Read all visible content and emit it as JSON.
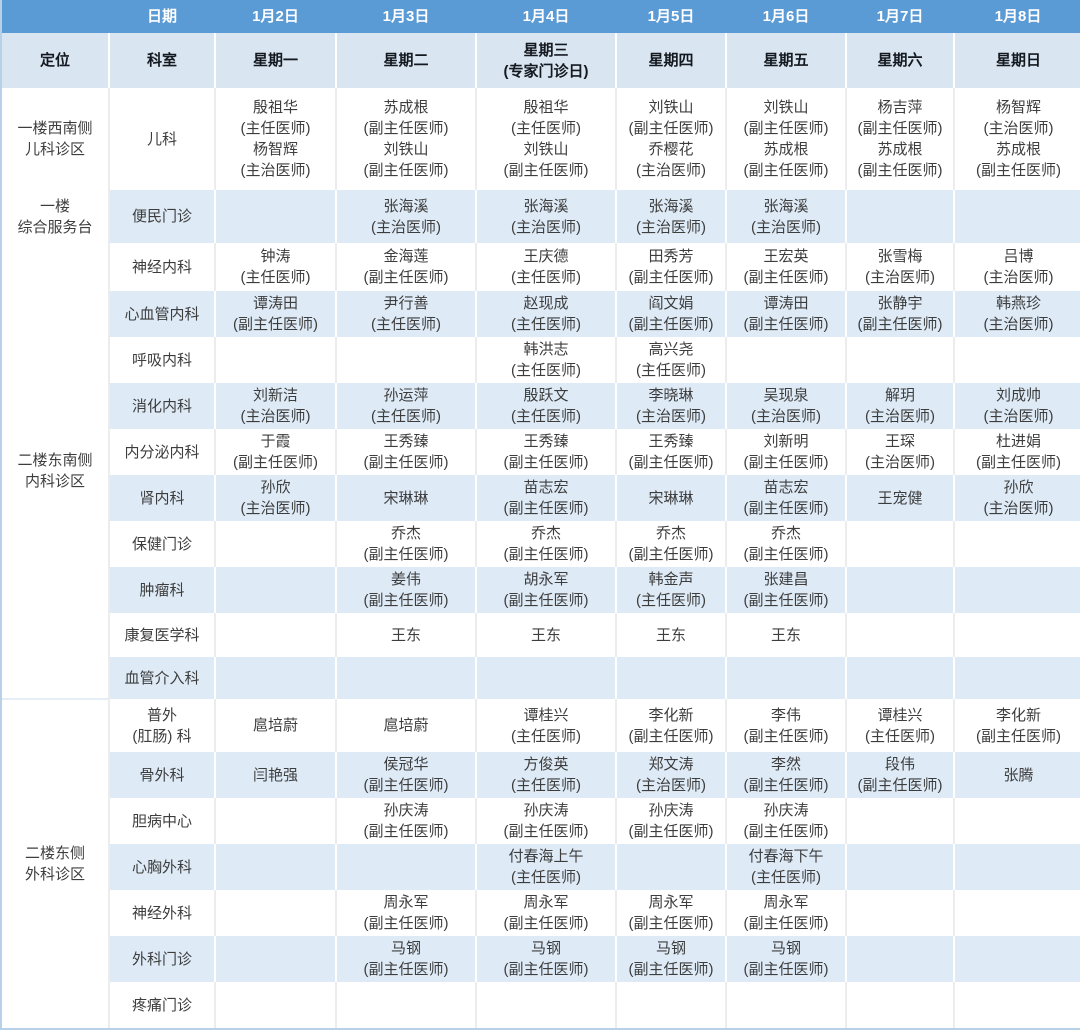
{
  "colors": {
    "header_blue": "#5b9bd5",
    "header_band": "#d9e5f1",
    "row_stripe": "#deebf7",
    "row_white": "#ffffff",
    "header_text": "#ffffff",
    "body_text": "#3d3d3d",
    "outer_border": "#b7d2e8"
  },
  "schedule": {
    "date_row_label": "日期",
    "dates": [
      "1月2日",
      "1月3日",
      "1月4日",
      "1月5日",
      "1月6日",
      "1月7日",
      "1月8日"
    ],
    "location_label": "定位",
    "department_label": "科室",
    "weekdays": [
      [
        "星期一"
      ],
      [
        "星期二"
      ],
      [
        "星期三",
        "(专家门诊日)"
      ],
      [
        "星期四"
      ],
      [
        "星期五"
      ],
      [
        "星期六"
      ],
      [
        "星期日"
      ]
    ],
    "groups": [
      {
        "location": [
          "一楼西南侧",
          "儿科诊区"
        ],
        "rows": [
          {
            "department": [
              "儿科"
            ],
            "days": [
              [
                "殷祖华",
                "(主任医师)",
                "杨智辉",
                "(主治医师)"
              ],
              [
                "苏成根",
                "(副主任医师)",
                "刘铁山",
                "(副主任医师)"
              ],
              [
                "殷祖华",
                "(主任医师)",
                "刘铁山",
                "(副主任医师)"
              ],
              [
                "刘铁山",
                "(副主任医师)",
                "乔樱花",
                "(主治医师)"
              ],
              [
                "刘铁山",
                "(副主任医师)",
                "苏成根",
                "(副主任医师)"
              ],
              [
                "杨吉萍",
                "(副主任医师)",
                "苏成根",
                "(副主任医师)"
              ],
              [
                "杨智辉",
                "(主治医师)",
                "苏成根",
                "(副主任医师)"
              ]
            ]
          }
        ]
      },
      {
        "location": [
          "一楼",
          "综合服务台"
        ],
        "rows": [
          {
            "department": [
              "便民门诊"
            ],
            "days": [
              [],
              [
                "张海溪",
                "(主治医师)"
              ],
              [
                "张海溪",
                "(主治医师)"
              ],
              [
                "张海溪",
                "(主治医师)"
              ],
              [
                "张海溪",
                "(主治医师)"
              ],
              [],
              []
            ]
          }
        ]
      },
      {
        "location": [
          "二楼东南侧",
          "内科诊区"
        ],
        "rows": [
          {
            "department": [
              "神经内科"
            ],
            "days": [
              [
                "钟涛",
                "(主任医师)"
              ],
              [
                "金海莲",
                "(副主任医师)"
              ],
              [
                "王庆德",
                "(主任医师)"
              ],
              [
                "田秀芳",
                "(副主任医师)"
              ],
              [
                "王宏英",
                "(副主任医师)"
              ],
              [
                "张雪梅",
                "(主治医师)"
              ],
              [
                "吕博",
                "(主治医师)"
              ]
            ]
          },
          {
            "department": [
              "心血管内科"
            ],
            "days": [
              [
                "谭涛田",
                "(副主任医师)"
              ],
              [
                "尹行善",
                "(主任医师)"
              ],
              [
                "赵现成",
                "(主任医师)"
              ],
              [
                "阎文娟",
                "(副主任医师)"
              ],
              [
                "谭涛田",
                "(副主任医师)"
              ],
              [
                "张静宇",
                "(副主任医师)"
              ],
              [
                "韩燕珍",
                "(主治医师)"
              ]
            ]
          },
          {
            "department": [
              "呼吸内科"
            ],
            "days": [
              [],
              [],
              [
                "韩洪志",
                "(主任医师)"
              ],
              [
                "高兴尧",
                "(主任医师)"
              ],
              [],
              [],
              []
            ]
          },
          {
            "department": [
              "消化内科"
            ],
            "days": [
              [
                "刘新洁",
                "(主治医师)"
              ],
              [
                "孙运萍",
                "(主任医师)"
              ],
              [
                "殷跃文",
                "(主任医师)"
              ],
              [
                "李晓琳",
                "(主治医师)"
              ],
              [
                "吴现泉",
                "(主治医师)"
              ],
              [
                "解玥",
                "(主治医师)"
              ],
              [
                "刘成帅",
                "(主治医师)"
              ]
            ]
          },
          {
            "department": [
              "内分泌内科"
            ],
            "days": [
              [
                "于霞",
                "(副主任医师)"
              ],
              [
                "王秀臻",
                "(副主任医师)"
              ],
              [
                "王秀臻",
                "(副主任医师)"
              ],
              [
                "王秀臻",
                "(副主任医师)"
              ],
              [
                "刘新明",
                "(副主任医师)"
              ],
              [
                "王琛",
                "(主治医师)"
              ],
              [
                "杜进娟",
                "(副主任医师)"
              ]
            ]
          },
          {
            "department": [
              "肾内科"
            ],
            "days": [
              [
                "孙欣",
                "(主治医师)"
              ],
              [
                "宋琳琳"
              ],
              [
                "苗志宏",
                "(副主任医师)"
              ],
              [
                "宋琳琳"
              ],
              [
                "苗志宏",
                "(副主任医师)"
              ],
              [
                "王宠健"
              ],
              [
                "孙欣",
                "(主治医师)"
              ]
            ]
          },
          {
            "department": [
              "保健门诊"
            ],
            "days": [
              [],
              [
                "乔杰",
                "(副主任医师)"
              ],
              [
                "乔杰",
                "(副主任医师)"
              ],
              [
                "乔杰",
                "(副主任医师)"
              ],
              [
                "乔杰",
                "(副主任医师)"
              ],
              [],
              []
            ]
          },
          {
            "department": [
              "肿瘤科"
            ],
            "days": [
              [],
              [
                "姜伟",
                "(副主任医师)"
              ],
              [
                "胡永军",
                "(副主任医师)"
              ],
              [
                "韩金声",
                "(主任医师)"
              ],
              [
                "张建昌",
                "(副主任医师)"
              ],
              [],
              []
            ]
          },
          {
            "department": [
              "康复医学科"
            ],
            "days": [
              [],
              [
                "王东"
              ],
              [
                "王东"
              ],
              [
                "王东"
              ],
              [
                "王东"
              ],
              [],
              []
            ]
          },
          {
            "department": [
              "血管介入科"
            ],
            "days": [
              [],
              [],
              [],
              [],
              [],
              [],
              []
            ]
          }
        ]
      },
      {
        "location": [
          "二楼东侧",
          "外科诊区"
        ],
        "rows": [
          {
            "department": [
              "普外",
              "(肛肠) 科"
            ],
            "days": [
              [
                "扈培蔚"
              ],
              [
                "扈培蔚"
              ],
              [
                "谭桂兴",
                "(主任医师)"
              ],
              [
                "李化新",
                "(副主任医师)"
              ],
              [
                "李伟",
                "(副主任医师)"
              ],
              [
                "谭桂兴",
                "(主任医师)"
              ],
              [
                "李化新",
                "(副主任医师)"
              ]
            ]
          },
          {
            "department": [
              "骨外科"
            ],
            "days": [
              [
                "闫艳强"
              ],
              [
                "侯冠华",
                "(副主任医师)"
              ],
              [
                "方俊英",
                "(主任医师)"
              ],
              [
                "郑文涛",
                "(主治医师)"
              ],
              [
                "李然",
                "(副主任医师)"
              ],
              [
                "段伟",
                "(副主任医师)"
              ],
              [
                "张腾"
              ]
            ]
          },
          {
            "department": [
              "胆病中心"
            ],
            "days": [
              [],
              [
                "孙庆涛",
                "(副主任医师)"
              ],
              [
                "孙庆涛",
                "(副主任医师)"
              ],
              [
                "孙庆涛",
                "(副主任医师)"
              ],
              [
                "孙庆涛",
                "(副主任医师)"
              ],
              [],
              []
            ]
          },
          {
            "department": [
              "心胸外科"
            ],
            "days": [
              [],
              [],
              [
                "付春海上午",
                "(主任医师)"
              ],
              [],
              [
                "付春海下午",
                "(主任医师)"
              ],
              [],
              []
            ]
          },
          {
            "department": [
              "神经外科"
            ],
            "days": [
              [],
              [
                "周永军",
                "(副主任医师)"
              ],
              [
                "周永军",
                "(副主任医师)"
              ],
              [
                "周永军",
                "(副主任医师)"
              ],
              [
                "周永军",
                "(副主任医师)"
              ],
              [],
              []
            ]
          },
          {
            "department": [
              "外科门诊"
            ],
            "days": [
              [],
              [
                "马钢",
                "(副主任医师)"
              ],
              [
                "马钢",
                "(副主任医师)"
              ],
              [
                "马钢",
                "(副主任医师)"
              ],
              [
                "马钢",
                "(副主任医师)"
              ],
              [],
              []
            ]
          },
          {
            "department": [
              "疼痛门诊"
            ],
            "days": [
              [],
              [],
              [],
              [],
              [],
              [],
              []
            ]
          }
        ]
      }
    ]
  }
}
